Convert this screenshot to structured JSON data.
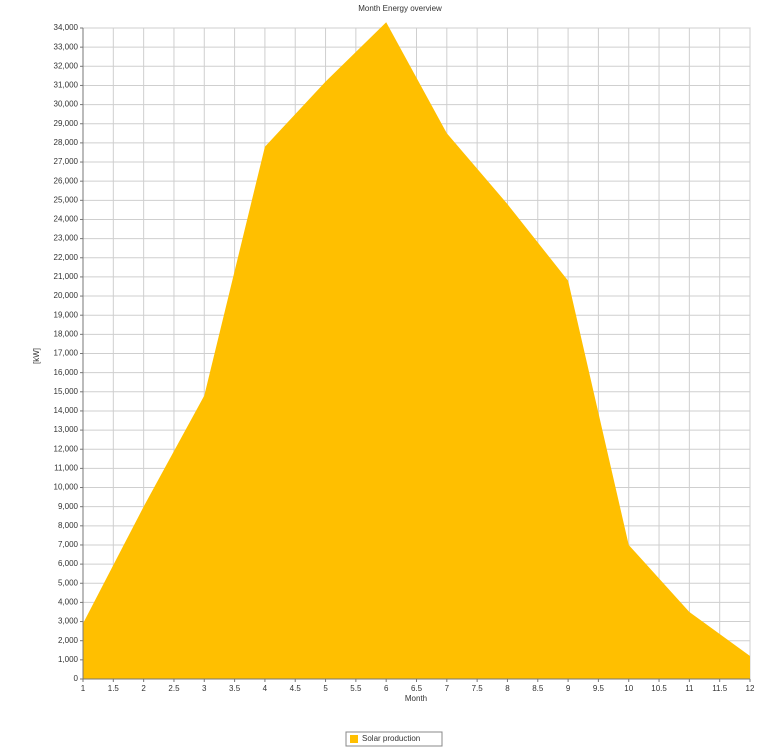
{
  "chart_data": {
    "type": "area",
    "title": "Month Energy overview",
    "xlabel": "Month",
    "ylabel": "[kW]",
    "x": [
      1,
      2,
      3,
      4,
      5,
      6,
      7,
      8,
      9,
      10,
      11,
      12
    ],
    "series": [
      {
        "name": "Solar production",
        "color": "#ffbf00",
        "values": [
          2900,
          9000,
          14800,
          27800,
          31200,
          34300,
          28500,
          24800,
          20800,
          7000,
          3500,
          1200
        ]
      }
    ],
    "xlim": [
      1,
      12
    ],
    "xticks": [
      1,
      1.5,
      2,
      2.5,
      3,
      3.5,
      4,
      4.5,
      5,
      5.5,
      6,
      6.5,
      7,
      7.5,
      8,
      8.5,
      9,
      9.5,
      10,
      10.5,
      11,
      11.5,
      12
    ],
    "ylim": [
      0,
      34000
    ],
    "yticks": [
      0,
      {
        "value": 1000,
        "label": "1,000"
      },
      {
        "value": 2000,
        "label": "2,000"
      },
      {
        "value": 3000,
        "label": "3,000"
      },
      {
        "value": 4000,
        "label": "4,000"
      },
      {
        "value": 5000,
        "label": "5,000"
      },
      {
        "value": 6000,
        "label": "6,000"
      },
      {
        "value": 7000,
        "label": "7,000"
      },
      {
        "value": 8000,
        "label": "8,000"
      },
      {
        "value": 9000,
        "label": "9,000"
      },
      {
        "value": 10000,
        "label": "10,000"
      },
      {
        "value": 11000,
        "label": "11,000"
      },
      {
        "value": 12000,
        "label": "12,000"
      },
      {
        "value": 13000,
        "label": "13,000"
      },
      {
        "value": 14000,
        "label": "14,000"
      },
      {
        "value": 15000,
        "label": "15,000"
      },
      {
        "value": 16000,
        "label": "16,000"
      },
      {
        "value": 17000,
        "label": "17,000"
      },
      {
        "value": 18000,
        "label": "18,000"
      },
      {
        "value": 19000,
        "label": "19,000"
      },
      {
        "value": 20000,
        "label": "20,000"
      },
      {
        "value": 21000,
        "label": "21,000"
      },
      {
        "value": 22000,
        "label": "22,000"
      },
      {
        "value": 23000,
        "label": "23,000"
      },
      {
        "value": 24000,
        "label": "24,000"
      },
      {
        "value": 25000,
        "label": "25,000"
      },
      {
        "value": 26000,
        "label": "26,000"
      },
      {
        "value": 27000,
        "label": "27,000"
      },
      {
        "value": 28000,
        "label": "28,000"
      },
      {
        "value": 29000,
        "label": "29,000"
      },
      {
        "value": 30000,
        "label": "30,000"
      },
      {
        "value": 31000,
        "label": "31,000"
      },
      {
        "value": 32000,
        "label": "32,000"
      },
      {
        "value": 33000,
        "label": "33,000"
      },
      {
        "value": 34000,
        "label": "34,000"
      }
    ],
    "grid": true,
    "legend": "bottom"
  }
}
